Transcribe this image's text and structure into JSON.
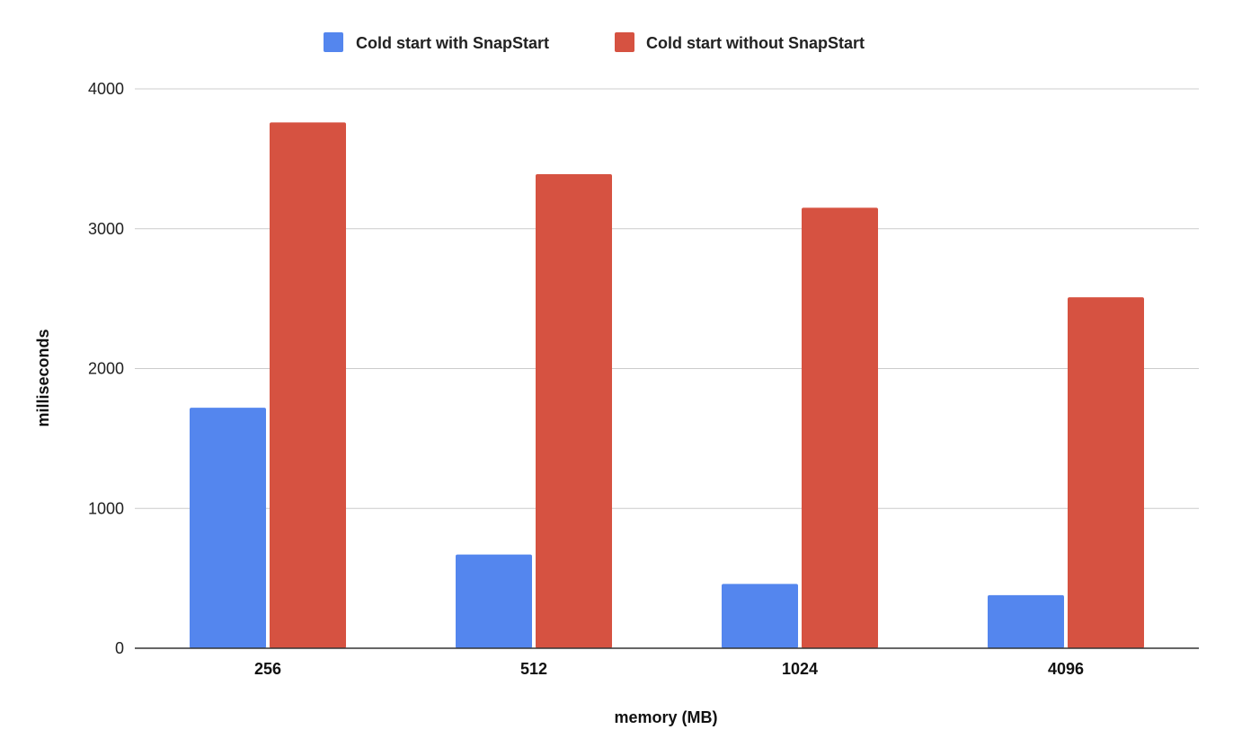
{
  "chart_data": {
    "type": "bar",
    "categories": [
      "256",
      "512",
      "1024",
      "4096"
    ],
    "series": [
      {
        "name": "Cold start with SnapStart",
        "values": [
          1720,
          670,
          460,
          380
        ],
        "color": "#5486ee"
      },
      {
        "name": "Cold start without SnapStart",
        "values": [
          3760,
          3390,
          3150,
          2510
        ],
        "color": "#d65241"
      }
    ],
    "xlabel": "memory (MB)",
    "ylabel": "milliseconds",
    "ylim": [
      0,
      4000
    ],
    "yticks": [
      0,
      1000,
      2000,
      3000,
      4000
    ],
    "grid": true,
    "legend_position": "top-center"
  }
}
